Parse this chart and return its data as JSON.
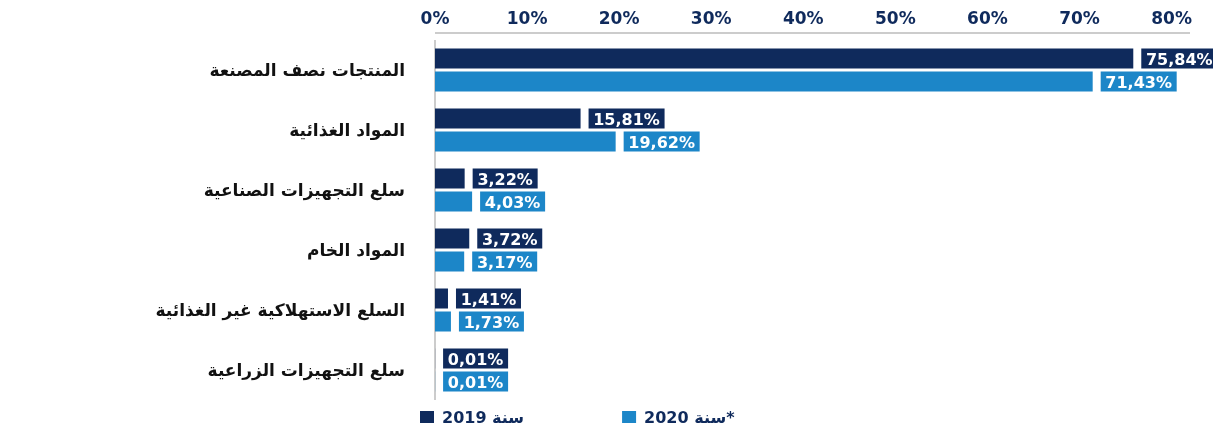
{
  "chart_data": {
    "type": "bar",
    "orientation": "horizontal",
    "categories": [
      "المنتجات نصف المصنعة",
      "المواد الغذائية",
      "سلع التجهيزات الصناعية",
      "المواد الخام",
      "السلع الاستهلاكية غير الغذائية",
      "سلع التجهيزات الزراعية"
    ],
    "series": [
      {
        "name": "سنة 2019",
        "color": "#0f2a5c",
        "values": [
          75.84,
          15.81,
          3.22,
          3.72,
          1.41,
          0.01
        ],
        "value_labels": [
          "75,84%",
          "15,81%",
          "3,22%",
          "3,72%",
          "1,41%",
          "0,01%"
        ]
      },
      {
        "name": "سنة 2020*",
        "color": "#1c86c8",
        "values": [
          71.43,
          19.62,
          4.03,
          3.17,
          1.73,
          0.01
        ],
        "value_labels": [
          "71,43%",
          "19,62%",
          "4,03%",
          "3,17%",
          "1,73%",
          "0,01%"
        ]
      }
    ],
    "xlim": [
      0,
      82
    ],
    "xticks": [
      {
        "value": 0,
        "label": "0%"
      },
      {
        "value": 10,
        "label": "10%"
      },
      {
        "value": 20,
        "label": "20%"
      },
      {
        "value": 30,
        "label": "30%"
      },
      {
        "value": 40,
        "label": "40%"
      },
      {
        "value": 50,
        "label": "50%"
      },
      {
        "value": 60,
        "label": "60%"
      },
      {
        "value": 70,
        "label": "70%"
      },
      {
        "value": 80,
        "label": "80%"
      }
    ],
    "grid": false,
    "legend": "bottom"
  }
}
